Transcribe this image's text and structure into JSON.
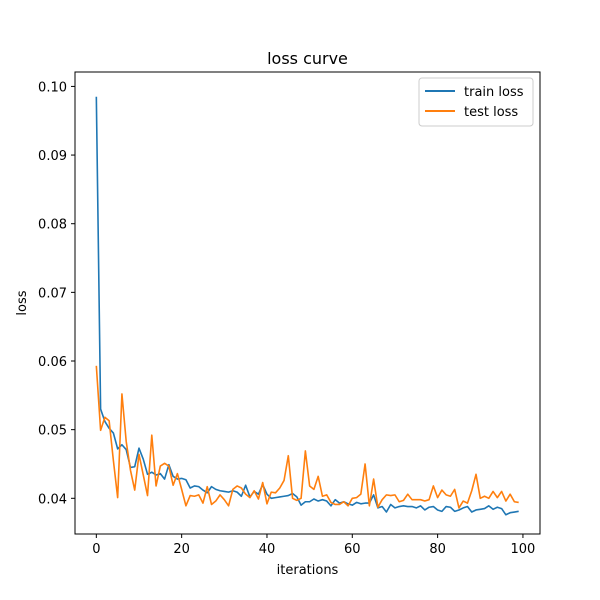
{
  "chart_data": {
    "type": "line",
    "title": "loss curve",
    "xlabel": "iterations",
    "ylabel": "loss",
    "xlim": [
      -5,
      104
    ],
    "ylim": [
      0.0348,
      0.1021
    ],
    "xticks": [
      0,
      20,
      40,
      60,
      80,
      100
    ],
    "yticks": [
      0.04,
      0.05,
      0.06,
      0.07,
      0.08,
      0.09,
      0.1
    ],
    "ytick_labels": [
      "0.04",
      "0.05",
      "0.06",
      "0.07",
      "0.08",
      "0.09",
      "0.10"
    ],
    "grid": false,
    "legend_position": "top-right",
    "series": [
      {
        "name": "train loss",
        "color": "#1f77b4",
        "x": [
          0,
          1,
          2,
          3,
          4,
          5,
          6,
          7,
          8,
          9,
          10,
          11,
          12,
          13,
          14,
          15,
          16,
          17,
          18,
          19,
          20,
          21,
          22,
          23,
          24,
          25,
          26,
          27,
          28,
          29,
          30,
          31,
          32,
          33,
          34,
          35,
          36,
          37,
          38,
          39,
          40,
          41,
          42,
          43,
          44,
          45,
          46,
          47,
          48,
          49,
          50,
          51,
          52,
          53,
          54,
          55,
          56,
          57,
          58,
          59,
          60,
          61,
          62,
          63,
          64,
          65,
          66,
          67,
          68,
          69,
          70,
          71,
          72,
          73,
          74,
          75,
          76,
          77,
          78,
          79,
          80,
          81,
          82,
          83,
          84,
          85,
          86,
          87,
          88,
          89,
          90,
          91,
          92,
          93,
          94,
          95,
          96,
          97,
          98,
          99
        ],
        "values": [
          0.0985,
          0.053,
          0.0512,
          0.0502,
          0.0495,
          0.0472,
          0.0478,
          0.0471,
          0.0445,
          0.0446,
          0.0473,
          0.0457,
          0.0435,
          0.0438,
          0.0434,
          0.0436,
          0.0428,
          0.0449,
          0.0432,
          0.0428,
          0.0429,
          0.0427,
          0.0415,
          0.0418,
          0.0417,
          0.0412,
          0.0408,
          0.0417,
          0.0413,
          0.0411,
          0.041,
          0.0409,
          0.0411,
          0.0409,
          0.0403,
          0.0419,
          0.0402,
          0.041,
          0.0406,
          0.042,
          0.0406,
          0.04,
          0.0401,
          0.0402,
          0.0403,
          0.0404,
          0.0407,
          0.0402,
          0.039,
          0.0395,
          0.0395,
          0.0399,
          0.0396,
          0.0398,
          0.0396,
          0.0389,
          0.0398,
          0.0393,
          0.0395,
          0.0392,
          0.039,
          0.0394,
          0.0392,
          0.0393,
          0.0393,
          0.0405,
          0.0386,
          0.0388,
          0.038,
          0.0391,
          0.0386,
          0.0388,
          0.0389,
          0.0388,
          0.0388,
          0.0386,
          0.0389,
          0.0383,
          0.0387,
          0.0388,
          0.0383,
          0.0381,
          0.0388,
          0.0387,
          0.0381,
          0.0383,
          0.0386,
          0.0388,
          0.038,
          0.0383,
          0.0384,
          0.0385,
          0.0389,
          0.0384,
          0.0387,
          0.0385,
          0.0376,
          0.0379,
          0.038,
          0.0381
        ]
      },
      {
        "name": "test loss",
        "color": "#ff7f0e",
        "x": [
          0,
          1,
          2,
          3,
          4,
          5,
          6,
          7,
          8,
          9,
          10,
          11,
          12,
          13,
          14,
          15,
          16,
          17,
          18,
          19,
          20,
          21,
          22,
          23,
          24,
          25,
          26,
          27,
          28,
          29,
          30,
          31,
          32,
          33,
          34,
          35,
          36,
          37,
          38,
          39,
          40,
          41,
          42,
          43,
          44,
          45,
          46,
          47,
          48,
          49,
          50,
          51,
          52,
          53,
          54,
          55,
          56,
          57,
          58,
          59,
          60,
          61,
          62,
          63,
          64,
          65,
          66,
          67,
          68,
          69,
          70,
          71,
          72,
          73,
          74,
          75,
          76,
          77,
          78,
          79,
          80,
          81,
          82,
          83,
          84,
          85,
          86,
          87,
          88,
          89,
          90,
          91,
          92,
          93,
          94,
          95,
          96,
          97,
          98,
          99
        ],
        "values": [
          0.0593,
          0.0499,
          0.0518,
          0.0513,
          0.0455,
          0.0401,
          0.0552,
          0.0483,
          0.0441,
          0.0412,
          0.0464,
          0.0434,
          0.0404,
          0.0492,
          0.0418,
          0.0447,
          0.0451,
          0.0447,
          0.0419,
          0.0436,
          0.0413,
          0.0389,
          0.0404,
          0.0403,
          0.0405,
          0.0393,
          0.0417,
          0.0391,
          0.0396,
          0.0405,
          0.0398,
          0.0389,
          0.0413,
          0.0418,
          0.0415,
          0.0406,
          0.0401,
          0.0411,
          0.0399,
          0.0423,
          0.0392,
          0.0409,
          0.0408,
          0.0415,
          0.0426,
          0.0462,
          0.04,
          0.0397,
          0.04,
          0.0469,
          0.0418,
          0.0413,
          0.0432,
          0.0403,
          0.0405,
          0.0394,
          0.0391,
          0.0391,
          0.0395,
          0.0389,
          0.04,
          0.0401,
          0.0406,
          0.045,
          0.0389,
          0.0428,
          0.0387,
          0.0398,
          0.0405,
          0.0404,
          0.0405,
          0.0395,
          0.0397,
          0.0406,
          0.0398,
          0.0398,
          0.0398,
          0.0396,
          0.0398,
          0.0418,
          0.0401,
          0.0412,
          0.0405,
          0.0403,
          0.0413,
          0.0386,
          0.0396,
          0.0393,
          0.0411,
          0.0435,
          0.04,
          0.0403,
          0.04,
          0.041,
          0.0401,
          0.041,
          0.0396,
          0.0406,
          0.0395,
          0.0394
        ]
      }
    ]
  }
}
